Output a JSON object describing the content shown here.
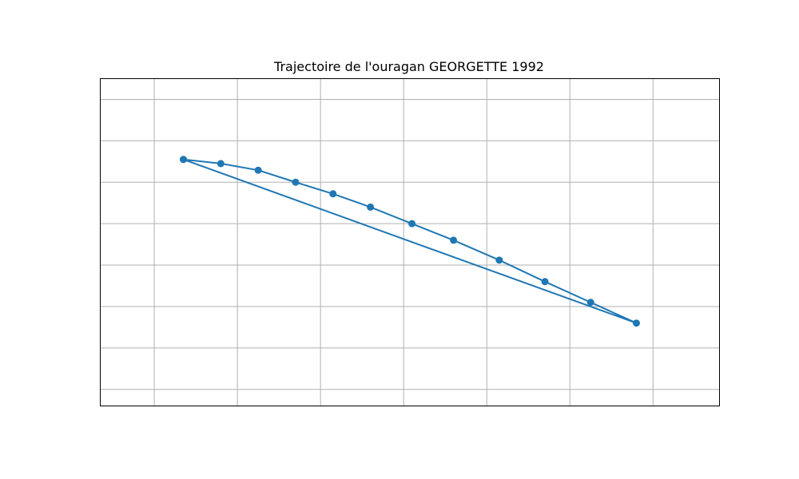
{
  "chart_data": {
    "type": "line",
    "title": "Trajectoire de l'ouragan GEORGETTE 1992",
    "xlabel": "",
    "ylabel": "",
    "grid": true,
    "legend": "none",
    "xlim": [
      -0.65,
      6.8
    ],
    "ylim": [
      -0.4,
      7.5
    ],
    "x_gridlines": [
      0,
      1,
      2,
      3,
      4,
      5,
      6
    ],
    "y_gridlines": [
      0,
      1,
      2,
      3,
      4,
      5,
      6,
      7
    ],
    "color": "#1f77b4",
    "points": [
      {
        "x": 0.35,
        "y": 5.55
      },
      {
        "x": 0.8,
        "y": 5.45
      },
      {
        "x": 1.25,
        "y": 5.29
      },
      {
        "x": 1.7,
        "y": 5.0
      },
      {
        "x": 2.15,
        "y": 4.72
      },
      {
        "x": 2.6,
        "y": 4.4
      },
      {
        "x": 3.1,
        "y": 4.0
      },
      {
        "x": 3.6,
        "y": 3.6
      },
      {
        "x": 4.15,
        "y": 3.12
      },
      {
        "x": 4.7,
        "y": 2.6
      },
      {
        "x": 5.25,
        "y": 2.1
      },
      {
        "x": 5.8,
        "y": 1.6
      },
      {
        "x": 0.35,
        "y": 5.55
      }
    ]
  }
}
